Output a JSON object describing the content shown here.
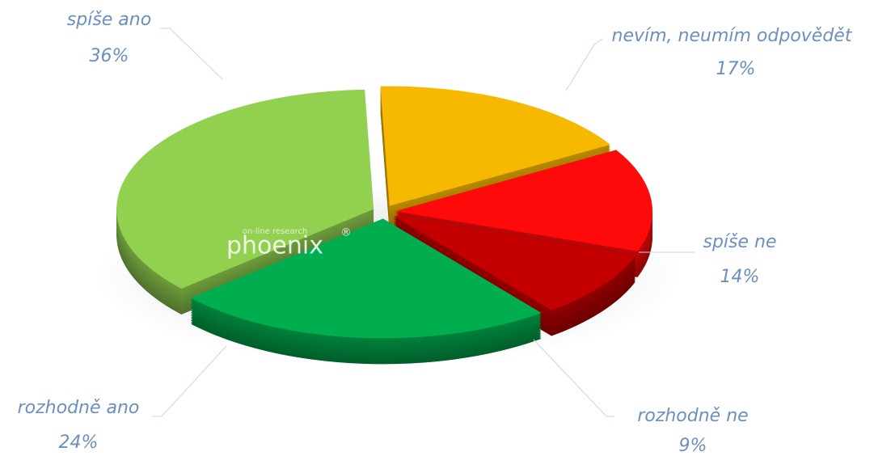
{
  "chart_data": {
    "type": "pie",
    "categories": [
      "nevím, neumím odpovědět",
      "spíše ne",
      "rozhodně ne",
      "rozhodně ano",
      "spíše ano"
    ],
    "values": [
      17,
      14,
      9,
      24,
      36
    ],
    "value_labels": [
      "17%",
      "14%",
      "9%",
      "24%",
      "36%"
    ],
    "colors": [
      "#f7b900",
      "#ff0a0a",
      "#c40000",
      "#00ad4f",
      "#92d050"
    ]
  },
  "watermark": {
    "tagline": "on-line research",
    "brand": "phoenix",
    "mark": "®"
  }
}
